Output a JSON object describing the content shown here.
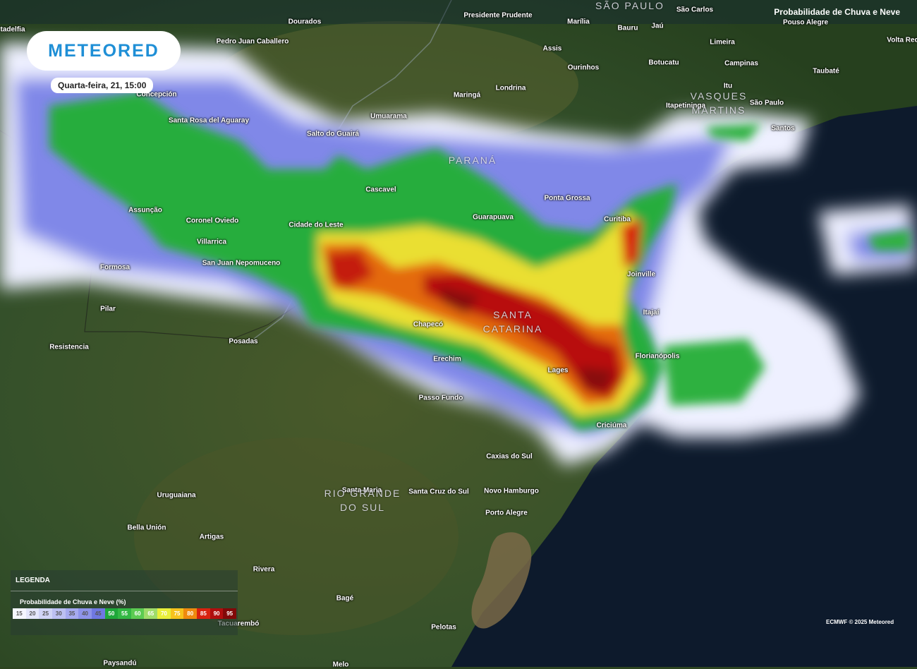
{
  "header": {
    "brand": "METEORED",
    "timestamp": "Quarta-feira, 21, 15:00",
    "layer_title": "Probabilidade de Chuva e Neve"
  },
  "legend": {
    "title": "LEGENDA",
    "subtitle": "Probabilidade de Chuva e Neve (%)",
    "steps": [
      15,
      20,
      25,
      30,
      35,
      40,
      45,
      50,
      55,
      60,
      65,
      70,
      75,
      80,
      85,
      90,
      95
    ],
    "colors": [
      "#f4f6ff",
      "#e3e6fb",
      "#d0d4f6",
      "#bcc0f2",
      "#a6aaef",
      "#8e94ea",
      "#6f78e2",
      "#1fa83a",
      "#33b844",
      "#5ccb52",
      "#9fdc6a",
      "#e8ef3a",
      "#f6c21c",
      "#ee8a0e",
      "#d8220f",
      "#b00e0e",
      "#820808"
    ]
  },
  "credit": "ECMWF © 2025 Meteored",
  "regions": [
    [
      "SÃO PAULO"
    ],
    [
      "PARANÁ"
    ],
    [
      "SANTA",
      "CATARINA"
    ],
    [
      "RIO GRANDE",
      "DO SUL"
    ],
    [
      "VASQUES",
      "MARTINS"
    ]
  ],
  "places": [
    "tadelfia",
    "Dourados",
    "Presidente Prudente",
    "Marília",
    "São Carlos",
    "Pedro Juan Caballero",
    "Bauru",
    "Jaú",
    "Pouso Alegre",
    "Assis",
    "Limeira",
    "Volta Red",
    "Concepción",
    "Ourinhos",
    "Botucatu",
    "Campinas",
    "Taubaté",
    "Maringá",
    "Londrina",
    "Itapetininga",
    "Itu",
    "São Paulo",
    "Santos",
    "Umuarama",
    "Santa Rosa del Aguaray",
    "Salto do Guairá",
    "Cascavel",
    "Ponta Grossa",
    "Curitiba",
    "Assunção",
    "Coronel Oviedo",
    "Cidade do Leste",
    "Guarapuava",
    "Villarrica",
    "San Juan Nepomuceno",
    "Formosa",
    "Joinville",
    "Pilar",
    "Itajaí",
    "Chapecó",
    "Resistencia",
    "Posadas",
    "Erechim",
    "Florianópolis",
    "Lages",
    "Passo Fundo",
    "Criciúma",
    "Caxias do Sul",
    "Santa Maria",
    "Santa Cruz do Sul",
    "Novo Hamburgo",
    "Porto Alegre",
    "Uruguaiana",
    "Bella Unión",
    "Artigas",
    "Rivera",
    "Bagé",
    "Pelotas",
    "Tacuarembó",
    "Paysandú",
    "Melo"
  ]
}
